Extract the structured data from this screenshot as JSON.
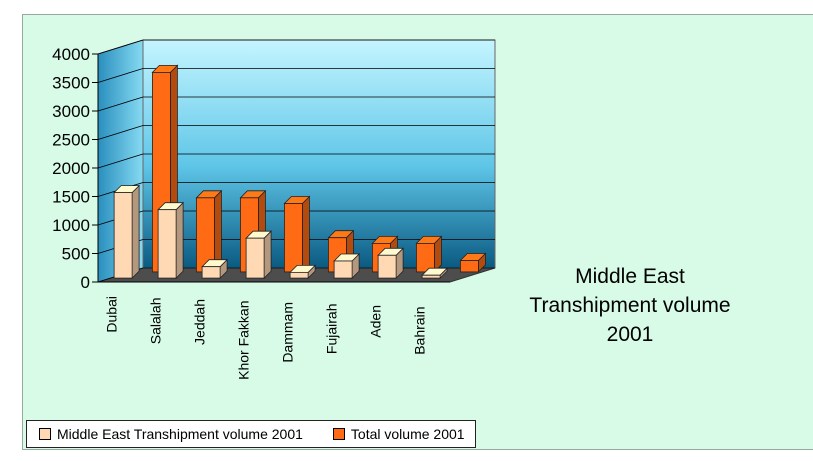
{
  "chart_data": {
    "type": "bar",
    "style": "3d-clustered-column",
    "title_lines": [
      "Middle East",
      "Transhipment volume",
      "2001"
    ],
    "categories": [
      "Dubai",
      "Salalah",
      "Jeddah",
      "Khor Fakkan",
      "Dammam",
      "Fujairah",
      "Aden",
      "Bahrain"
    ],
    "series": [
      {
        "name": "Middle East Transhipment volume 2001",
        "color": "#ffd9b3",
        "values": [
          1500,
          1200,
          200,
          700,
          100,
          300,
          400,
          50
        ]
      },
      {
        "name": "Total volume 2001",
        "color": "#ff6a14",
        "values": [
          3500,
          1300,
          1300,
          1200,
          600,
          500,
          500,
          200
        ]
      }
    ],
    "yticks": [
      "0",
      "500",
      "1000",
      "1500",
      "2000",
      "2500",
      "3000",
      "3500",
      "4000"
    ],
    "ylim": [
      0,
      4000
    ],
    "grid": true,
    "legend_position": "bottom",
    "colors": {
      "background": "#d8fbe8",
      "wall_top": "#bff3ff",
      "wall_bottom": "#0c5f86",
      "floor": "#525252"
    }
  }
}
